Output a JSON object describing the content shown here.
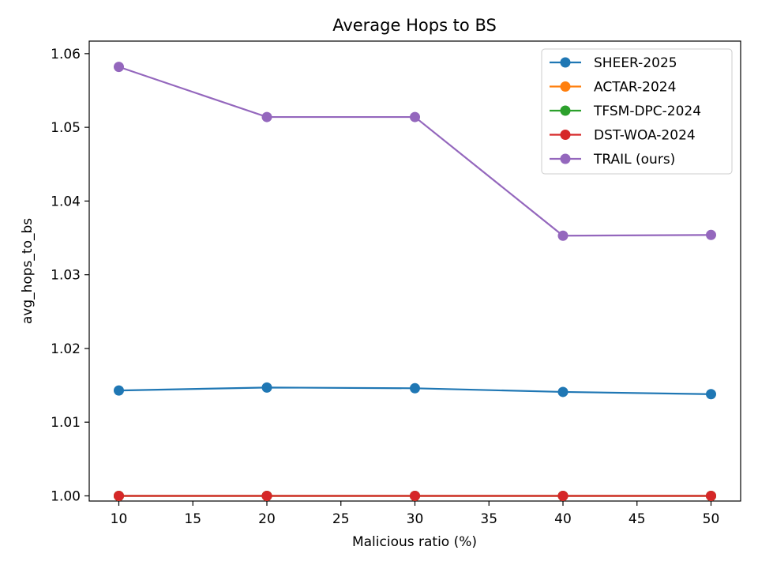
{
  "chart_data": {
    "type": "line",
    "title": "Average Hops to BS",
    "xlabel": "Malicious ratio (%)",
    "ylabel": "avg_hops_to_bs",
    "x": [
      10,
      20,
      30,
      40,
      50
    ],
    "xlim": [
      8,
      52
    ],
    "ylim": [
      0.9993,
      1.0617
    ],
    "xticks": [
      10,
      15,
      20,
      25,
      30,
      35,
      40,
      45,
      50
    ],
    "yticks": [
      1.0,
      1.01,
      1.02,
      1.03,
      1.04,
      1.05,
      1.06
    ],
    "ytick_labels": [
      "1.00",
      "1.01",
      "1.02",
      "1.03",
      "1.04",
      "1.05",
      "1.06"
    ],
    "grid": false,
    "legend_position": "top-right",
    "series": [
      {
        "name": "SHEER-2025",
        "color": "#1f77b4",
        "values": [
          1.0143,
          1.0147,
          1.0146,
          1.0141,
          1.0138
        ]
      },
      {
        "name": "ACTAR-2024",
        "color": "#ff7f0e",
        "values": [
          1.0,
          1.0,
          1.0,
          1.0,
          1.0
        ]
      },
      {
        "name": "TFSM-DPC-2024",
        "color": "#2ca02c",
        "values": [
          1.0,
          1.0,
          1.0,
          1.0,
          1.0
        ]
      },
      {
        "name": "DST-WOA-2024",
        "color": "#d62728",
        "values": [
          1.0,
          1.0,
          1.0,
          1.0,
          1.0
        ]
      },
      {
        "name": "TRAIL (ours)",
        "color": "#9467bd",
        "values": [
          1.0582,
          1.0514,
          1.0514,
          1.0353,
          1.0354
        ]
      }
    ]
  }
}
